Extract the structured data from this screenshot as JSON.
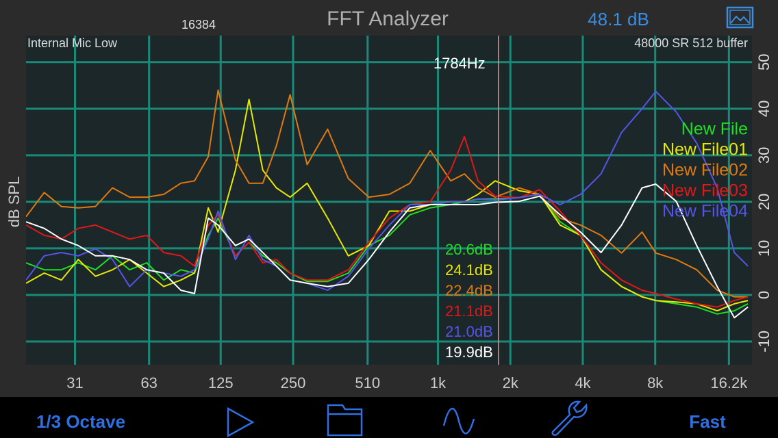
{
  "header": {
    "fft_size": 16384,
    "title": "FFT Analyzer",
    "level": "48.1 dB"
  },
  "toolbar": {
    "resolution": "1/3 Octave",
    "speed": "Fast"
  },
  "chart_data": {
    "type": "line",
    "input": "Internal Mic Low",
    "settings": "48000 SR 512 buffer",
    "ylabel": "dB SPL",
    "xscale": "log",
    "grid": true,
    "legend": "right",
    "xlim": [
      19.4,
      20200
    ],
    "ylim": [
      -15,
      55.7
    ],
    "xticks": [
      31,
      63,
      125,
      250,
      510,
      {
        "value": 1000,
        "label": "1k"
      },
      {
        "value": 2000,
        "label": "2k"
      },
      {
        "value": 4000,
        "label": "4k"
      },
      {
        "value": 8000,
        "label": "8k"
      },
      {
        "value": 16200,
        "label": "16.2k"
      }
    ],
    "yticks": [
      -10,
      0,
      10,
      20,
      30,
      40,
      50
    ],
    "cursor": {
      "x": 1784,
      "label": "1784Hz"
    },
    "x": [
      19.4,
      23.1,
      27.2,
      32,
      37.7,
      44.4,
      52.3,
      61.6,
      72.5,
      85.4,
      97.3,
      111,
      122,
      144,
      164,
      187,
      213,
      243,
      286,
      348,
      424,
      516,
      628,
      764,
      929,
      1131,
      1288,
      1468,
      1729,
      2175,
      2646,
      3218,
      3916,
      4765,
      5797,
      7053,
      8042,
      9784,
      11904,
      14483,
      17060,
      19434
    ],
    "series": [
      {
        "name": "New File",
        "color": "#22dd22",
        "readout": "20.6dB",
        "values": [
          6.9,
          5.4,
          5.4,
          6.9,
          5.4,
          8.4,
          5.4,
          6.9,
          3.2,
          5.4,
          4.7,
          12.8,
          16.5,
          8.4,
          11.3,
          8.4,
          6.9,
          4.7,
          2.9,
          2.9,
          4.7,
          10.6,
          12.8,
          17.2,
          18.7,
          19.4,
          20,
          20.6,
          20.6,
          20.9,
          21.6,
          15.7,
          12.8,
          5.4,
          1.8,
          -0.4,
          -1.2,
          -1.9,
          -2.6,
          -4.1,
          -3.4,
          -1.9
        ]
      },
      {
        "name": "New File01",
        "color": "#e8e800",
        "readout": "24.1dB",
        "values": [
          2.5,
          4.7,
          3.2,
          7.6,
          4,
          5.4,
          7.6,
          4.7,
          1.8,
          3.2,
          4.7,
          18.7,
          13.5,
          26.8,
          42,
          26.8,
          23,
          21,
          24,
          16.5,
          8.4,
          10.6,
          18,
          18,
          19.4,
          20,
          20,
          21.6,
          24.5,
          22.4,
          21.6,
          15,
          12.8,
          5.4,
          1.8,
          -0.4,
          -1.2,
          -1.5,
          -1.9,
          -3.4,
          -1.9,
          -1.2
        ]
      },
      {
        "name": "New File02",
        "color": "#e07a10",
        "readout": "22.4dB",
        "values": [
          16.8,
          22,
          19,
          18.7,
          19,
          23,
          21,
          21,
          21.6,
          24,
          24.5,
          29.7,
          44,
          29,
          24,
          24,
          32,
          43,
          28,
          35.6,
          25,
          21,
          21.6,
          24,
          31,
          24.5,
          26,
          23,
          21,
          23,
          21.6,
          16.5,
          15,
          12.8,
          9,
          13.5,
          9,
          7.6,
          5.4,
          1,
          -0.4,
          -0.4
        ]
      },
      {
        "name": "New File03",
        "color": "#e01818",
        "readout": "21.1dB",
        "values": [
          15,
          12.8,
          12,
          14.3,
          15,
          13.5,
          12,
          12.8,
          9.1,
          8.4,
          6.2,
          15,
          17.2,
          8.4,
          11.3,
          6.9,
          7.6,
          4.7,
          3.2,
          3.2,
          5.4,
          11.3,
          16.5,
          19.4,
          20,
          26.8,
          34,
          24.5,
          21.2,
          20.9,
          22.6,
          18,
          12.8,
          6.9,
          3.2,
          1,
          0.3,
          -0.9,
          -1.9,
          -2.6,
          -1.2,
          -0.4
        ]
      },
      {
        "name": "New File04",
        "color": "#5555e8",
        "readout": "21.0dB",
        "values": [
          3.2,
          8.4,
          9.1,
          8.4,
          9.9,
          7.6,
          1.8,
          5.4,
          4.7,
          4,
          5.4,
          12,
          18,
          7.6,
          12.8,
          7.6,
          6.2,
          3.2,
          2.5,
          1,
          4,
          9.9,
          15,
          19.4,
          19.4,
          20,
          20,
          20.6,
          20.4,
          20.9,
          21.6,
          19.4,
          21.6,
          26,
          34.9,
          40,
          43.7,
          39.3,
          32.6,
          23,
          9.1,
          6.2
        ]
      },
      {
        "color": "#ffffff",
        "readout": "19.9dB",
        "values": [
          15.7,
          14.3,
          12,
          10.6,
          8.4,
          8.4,
          7.6,
          5.4,
          4.7,
          1,
          0.3,
          16.5,
          15,
          10.6,
          12,
          9.1,
          6.2,
          3.2,
          2.5,
          1.8,
          2.5,
          7.6,
          13.5,
          18.7,
          19.4,
          19.4,
          19.4,
          19.4,
          19.9,
          20.1,
          21.2,
          17.2,
          13.5,
          9.1,
          15,
          23,
          23.8,
          20.1,
          10.6,
          1.8,
          -4.9,
          -2.6
        ]
      }
    ]
  }
}
